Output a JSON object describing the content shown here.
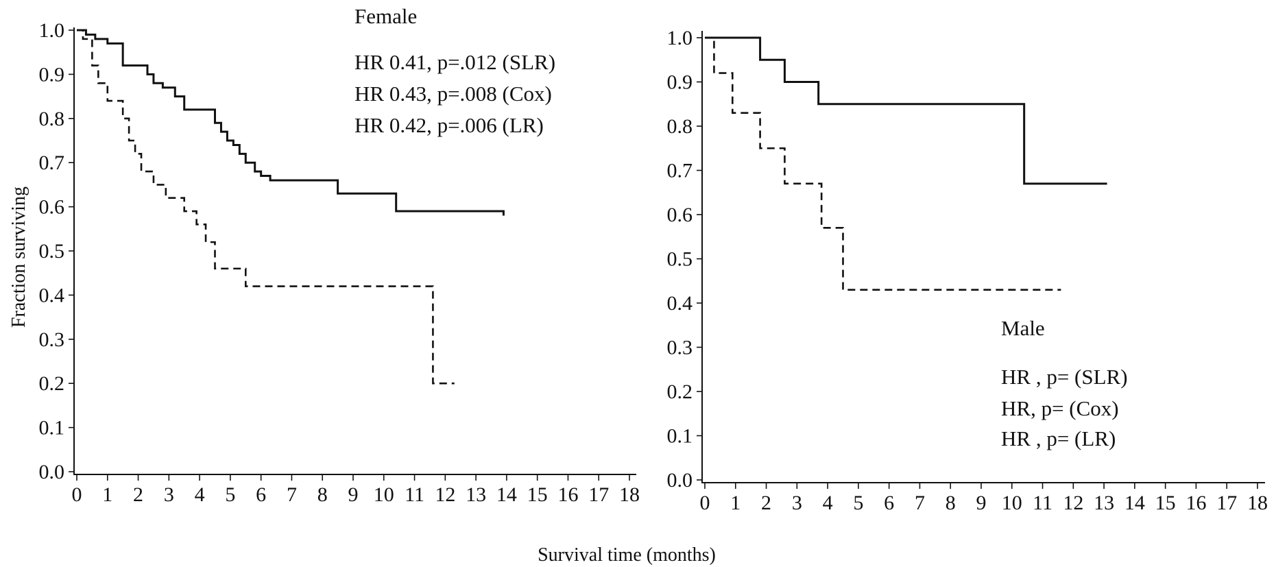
{
  "chart_data": [
    {
      "type": "line",
      "step": true,
      "panel": "left",
      "title": "Female",
      "annotations": [
        "HR 0.41, p=.012 (SLR)",
        "HR 0.43, p=.008 (Cox)",
        "HR 0.42, p=.006 (LR)"
      ],
      "ylabel": "Fraction surviving",
      "xlim": [
        0,
        18
      ],
      "ylim": [
        0,
        1.0
      ],
      "x_ticks": [
        0,
        1,
        2,
        3,
        4,
        5,
        6,
        7,
        8,
        9,
        10,
        11,
        12,
        13,
        14,
        15,
        16,
        17,
        18
      ],
      "y_ticks": [
        "0.0",
        "0.1",
        "0.2",
        "0.3",
        "0.4",
        "0.5",
        "0.6",
        "0.7",
        "0.8",
        "0.9",
        "1.0"
      ],
      "series": [
        {
          "style": "solid",
          "x": [
            0,
            0.3,
            0.6,
            1.0,
            1.5,
            2.3,
            2.5,
            2.8,
            3.2,
            3.5,
            4.5,
            4.7,
            4.9,
            5.1,
            5.3,
            5.5,
            5.8,
            6.0,
            6.3,
            8.5,
            10.4,
            13.9
          ],
          "y": [
            1.0,
            0.99,
            0.98,
            0.97,
            0.92,
            0.9,
            0.88,
            0.87,
            0.85,
            0.82,
            0.79,
            0.77,
            0.75,
            0.74,
            0.72,
            0.7,
            0.68,
            0.67,
            0.66,
            0.63,
            0.59,
            0.58
          ]
        },
        {
          "style": "dashed",
          "x": [
            0,
            0.2,
            0.5,
            0.7,
            1.0,
            1.5,
            1.7,
            1.9,
            2.1,
            2.5,
            2.9,
            3.5,
            3.9,
            4.2,
            4.5,
            5.5,
            11.6,
            12.3
          ],
          "y": [
            1.0,
            0.98,
            0.92,
            0.88,
            0.84,
            0.8,
            0.75,
            0.72,
            0.68,
            0.65,
            0.62,
            0.59,
            0.56,
            0.52,
            0.46,
            0.42,
            0.2,
            0.2
          ]
        }
      ]
    },
    {
      "type": "line",
      "step": true,
      "panel": "right",
      "title": "Male",
      "annotations": [
        "HR , p= (SLR)",
        "HR,  p= (Cox)",
        "HR , p= (LR)"
      ],
      "ylabel": "",
      "xlim": [
        0,
        18
      ],
      "ylim": [
        0,
        1.0
      ],
      "x_ticks": [
        0,
        1,
        2,
        3,
        4,
        5,
        6,
        7,
        8,
        9,
        10,
        11,
        12,
        13,
        14,
        15,
        16,
        17,
        18
      ],
      "y_ticks": [
        "0.0",
        "0.1",
        "0.2",
        "0.3",
        "0.4",
        "0.5",
        "0.6",
        "0.7",
        "0.8",
        "0.9",
        "1.0"
      ],
      "series": [
        {
          "style": "solid",
          "x": [
            0,
            1.8,
            2.6,
            3.7,
            10.4,
            13.1
          ],
          "y": [
            1.0,
            0.95,
            0.9,
            0.85,
            0.67,
            0.67
          ]
        },
        {
          "style": "dashed",
          "x": [
            0,
            0.3,
            0.9,
            1.8,
            2.6,
            3.8,
            4.5,
            11.6
          ],
          "y": [
            1.0,
            0.92,
            0.83,
            0.75,
            0.67,
            0.57,
            0.43,
            0.43
          ]
        }
      ]
    }
  ],
  "xlabel": "Survival time (months)"
}
